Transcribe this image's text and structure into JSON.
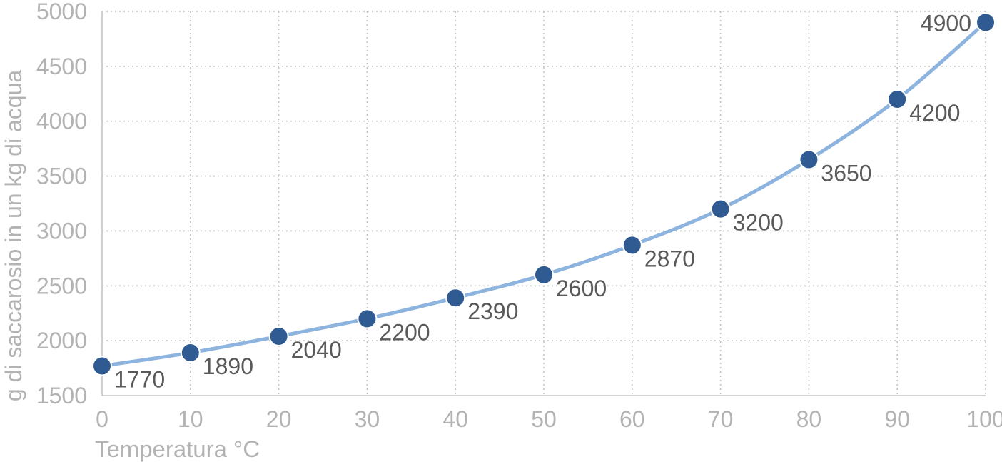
{
  "chart_data": {
    "type": "line",
    "xlabel": "Temperatura °C",
    "ylabel": "g di saccarosio in un kg di acqua",
    "x": [
      0,
      10,
      20,
      30,
      40,
      50,
      60,
      70,
      80,
      90,
      100
    ],
    "xlim": [
      0,
      100
    ],
    "xticks": [
      "0",
      "10",
      "20",
      "30",
      "40",
      "50",
      "60",
      "70",
      "80",
      "90",
      "100"
    ],
    "ylim": [
      1500,
      5000
    ],
    "yticks": [
      "1500",
      "2000",
      "2500",
      "3000",
      "3500",
      "4000",
      "4500",
      "5000"
    ],
    "series": [
      {
        "values": [
          1770,
          1890,
          2040,
          2200,
          2390,
          2600,
          2870,
          3200,
          3650,
          4200,
          4900
        ],
        "labels": [
          "1770",
          "1890",
          "2040",
          "2200",
          "2390",
          "2600",
          "2870",
          "3200",
          "3650",
          "4200",
          "4900"
        ]
      }
    ],
    "grid": true,
    "colors": {
      "line": "#8db4df",
      "marker": "#2f5b92",
      "text": "#5a5a5a",
      "axis_text": "#b3b3b3"
    }
  }
}
